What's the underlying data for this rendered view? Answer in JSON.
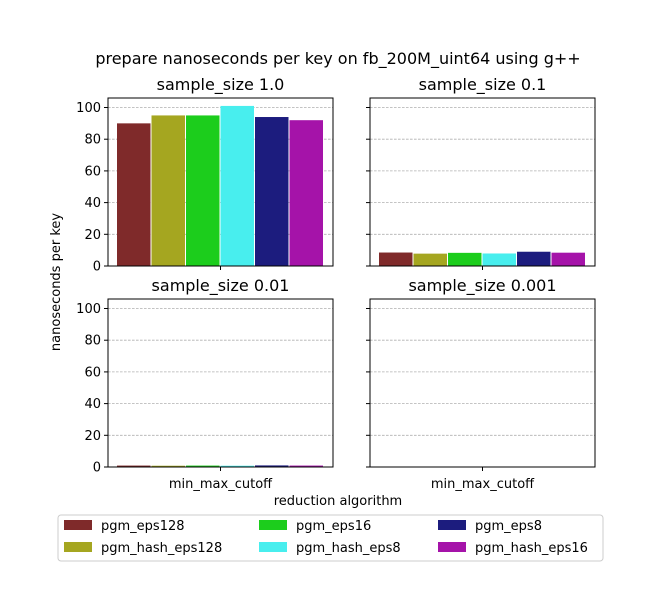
{
  "figure": {
    "suptitle": "prepare nanoseconds per key on fb_200M_uint64 using g++",
    "xlabel": "reduction algorithm",
    "ylabel": "nanoseconds per key"
  },
  "legend": {
    "placement": "bottom-center",
    "columns": 3,
    "entries": [
      {
        "name": "pgm_eps128",
        "color": "#7f2a2a"
      },
      {
        "name": "pgm_hash_eps128",
        "color": "#a5a620"
      },
      {
        "name": "pgm_eps16",
        "color": "#1ccd1c"
      },
      {
        "name": "pgm_hash_eps8",
        "color": "#48eeee"
      },
      {
        "name": "pgm_eps8",
        "color": "#1c1c7e"
      },
      {
        "name": "pgm_hash_eps16",
        "color": "#a513a9"
      }
    ]
  },
  "chart_data": [
    {
      "type": "bar",
      "title": "sample_size 1.0",
      "categories": [
        "min_max_cutoff"
      ],
      "show_tick_labels_x": false,
      "show_tick_labels_y": true,
      "ylim": [
        0,
        106
      ],
      "yticks": [
        0,
        20,
        40,
        60,
        80,
        100
      ],
      "grid": "y",
      "series": [
        {
          "name": "pgm_eps128",
          "values": [
            90
          ]
        },
        {
          "name": "pgm_hash_eps128",
          "values": [
            95
          ]
        },
        {
          "name": "pgm_eps16",
          "values": [
            95
          ]
        },
        {
          "name": "pgm_hash_eps8",
          "values": [
            101
          ]
        },
        {
          "name": "pgm_eps8",
          "values": [
            94
          ]
        },
        {
          "name": "pgm_hash_eps16",
          "values": [
            92
          ]
        }
      ]
    },
    {
      "type": "bar",
      "title": "sample_size 0.1",
      "categories": [
        "min_max_cutoff"
      ],
      "show_tick_labels_x": false,
      "show_tick_labels_y": false,
      "ylim": [
        0,
        106
      ],
      "yticks": [
        0,
        20,
        40,
        60,
        80,
        100
      ],
      "grid": "y",
      "series": [
        {
          "name": "pgm_eps128",
          "values": [
            8.5
          ]
        },
        {
          "name": "pgm_hash_eps128",
          "values": [
            7.8
          ]
        },
        {
          "name": "pgm_eps16",
          "values": [
            8.3
          ]
        },
        {
          "name": "pgm_hash_eps8",
          "values": [
            7.9
          ]
        },
        {
          "name": "pgm_eps8",
          "values": [
            9.0
          ]
        },
        {
          "name": "pgm_hash_eps16",
          "values": [
            8.4
          ]
        }
      ]
    },
    {
      "type": "bar",
      "title": "sample_size 0.01",
      "categories": [
        "min_max_cutoff"
      ],
      "show_tick_labels_x": true,
      "show_tick_labels_y": true,
      "ylim": [
        0,
        106
      ],
      "yticks": [
        0,
        20,
        40,
        60,
        80,
        100
      ],
      "grid": "y",
      "series": [
        {
          "name": "pgm_eps128",
          "values": [
            0.9
          ]
        },
        {
          "name": "pgm_hash_eps128",
          "values": [
            0.8
          ]
        },
        {
          "name": "pgm_eps16",
          "values": [
            0.9
          ]
        },
        {
          "name": "pgm_hash_eps8",
          "values": [
            0.8
          ]
        },
        {
          "name": "pgm_eps8",
          "values": [
            1.0
          ]
        },
        {
          "name": "pgm_hash_eps16",
          "values": [
            0.9
          ]
        }
      ]
    },
    {
      "type": "bar",
      "title": "sample_size 0.001",
      "categories": [
        "min_max_cutoff"
      ],
      "show_tick_labels_x": true,
      "show_tick_labels_y": false,
      "ylim": [
        0,
        106
      ],
      "yticks": [
        0,
        20,
        40,
        60,
        80,
        100
      ],
      "grid": "y",
      "series": [
        {
          "name": "pgm_eps128",
          "values": [
            0.1
          ]
        },
        {
          "name": "pgm_hash_eps128",
          "values": [
            0.1
          ]
        },
        {
          "name": "pgm_eps16",
          "values": [
            0.1
          ]
        },
        {
          "name": "pgm_hash_eps8",
          "values": [
            0.1
          ]
        },
        {
          "name": "pgm_eps8",
          "values": [
            0.1
          ]
        },
        {
          "name": "pgm_hash_eps16",
          "values": [
            0.1
          ]
        }
      ]
    }
  ]
}
